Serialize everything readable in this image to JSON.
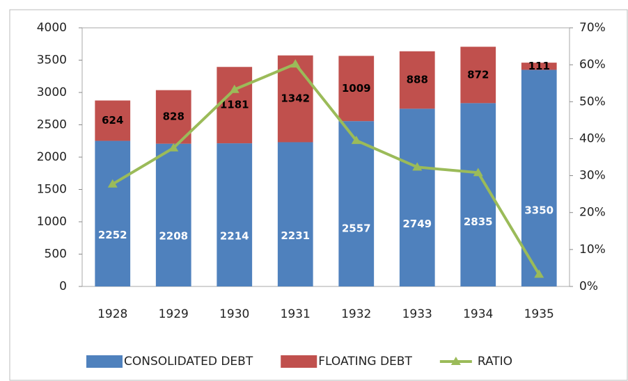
{
  "chart_data": {
    "type": "bar",
    "categories": [
      "1928",
      "1929",
      "1930",
      "1931",
      "1932",
      "1933",
      "1934",
      "1935"
    ],
    "stacked": true,
    "series": [
      {
        "name": "CONSOLIDATED DEBT",
        "color": "#4f81bd",
        "values": [
          2252,
          2208,
          2214,
          2231,
          2557,
          2749,
          2835,
          3350
        ]
      },
      {
        "name": "FLOATING DEBT",
        "color": "#c0504d",
        "values": [
          624,
          828,
          1181,
          1342,
          1009,
          888,
          872,
          111
        ]
      },
      {
        "name": "RATIO",
        "color": "#9bbb59",
        "type": "line",
        "axis": "y2",
        "values": [
          27.7,
          37.5,
          53.3,
          60.2,
          39.5,
          32.3,
          30.8,
          3.3
        ]
      }
    ],
    "ylim": [
      0,
      4000
    ],
    "yticks": [
      0,
      500,
      1000,
      1500,
      2000,
      2500,
      3000,
      3500,
      4000
    ],
    "y2lim": [
      0,
      70
    ],
    "y2ticks": [
      {
        "value": 0,
        "label": "0%"
      },
      {
        "value": 10,
        "label": "10%"
      },
      {
        "value": 20,
        "label": "20%"
      },
      {
        "value": 30,
        "label": "30%"
      },
      {
        "value": 40,
        "label": "40%"
      },
      {
        "value": 50,
        "label": "50%"
      },
      {
        "value": 60,
        "label": "60%"
      },
      {
        "value": 70,
        "label": "70%"
      }
    ],
    "legend": "bottom"
  }
}
